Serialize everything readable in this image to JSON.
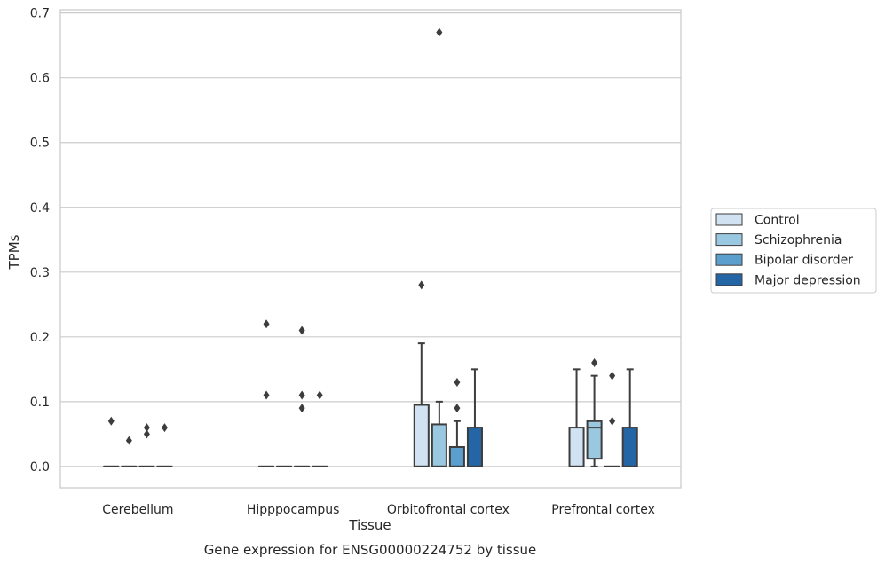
{
  "caption": "Gene expression for ENSG00000224752 by tissue",
  "chart_data": {
    "type": "box",
    "xlabel": "Tissue",
    "ylabel": "TPMs",
    "ylim": [
      -0.033,
      0.705
    ],
    "yticks": [
      0.0,
      0.1,
      0.2,
      0.3,
      0.4,
      0.5,
      0.6,
      0.7
    ],
    "ytick_labels": [
      "0.0",
      "0.1",
      "0.2",
      "0.3",
      "0.4",
      "0.5",
      "0.6",
      "0.7"
    ],
    "grid": "horizontal",
    "legend_position": "right",
    "categories": [
      "Cerebellum",
      "Hipppocampus",
      "Orbitofrontal cortex",
      "Prefrontal cortex"
    ],
    "series": [
      {
        "name": "Control",
        "color": "#d1e2f2",
        "boxes": [
          {
            "q1": 0,
            "median": 0,
            "q3": 0,
            "whislo": 0,
            "whishi": 0,
            "fliers": [
              0.07
            ]
          },
          {
            "q1": 0,
            "median": 0,
            "q3": 0,
            "whislo": 0,
            "whishi": 0,
            "fliers": [
              0.22,
              0.11
            ]
          },
          {
            "q1": 0,
            "median": 0,
            "q3": 0.095,
            "whislo": 0,
            "whishi": 0.19,
            "fliers": [
              0.28
            ]
          },
          {
            "q1": 0,
            "median": 0,
            "q3": 0.06,
            "whislo": 0,
            "whishi": 0.15,
            "fliers": []
          }
        ]
      },
      {
        "name": "Schizophrenia",
        "color": "#9ac8e0",
        "boxes": [
          {
            "q1": 0,
            "median": 0,
            "q3": 0,
            "whislo": 0,
            "whishi": 0,
            "fliers": [
              0.04
            ]
          },
          {
            "q1": 0,
            "median": 0,
            "q3": 0,
            "whislo": 0,
            "whishi": 0,
            "fliers": []
          },
          {
            "q1": 0,
            "median": 0,
            "q3": 0.065,
            "whislo": 0,
            "whishi": 0.1,
            "fliers": [
              0.67
            ]
          },
          {
            "q1": 0.012,
            "median": 0.06,
            "q3": 0.07,
            "whislo": 0,
            "whishi": 0.14,
            "fliers": [
              0.16
            ]
          }
        ]
      },
      {
        "name": "Bipolar disorder",
        "color": "#5b9fcf",
        "boxes": [
          {
            "q1": 0,
            "median": 0,
            "q3": 0,
            "whislo": 0,
            "whishi": 0,
            "fliers": [
              0.06,
              0.05
            ]
          },
          {
            "q1": 0,
            "median": 0,
            "q3": 0,
            "whislo": 0,
            "whishi": 0,
            "fliers": [
              0.21,
              0.11,
              0.09
            ]
          },
          {
            "q1": 0,
            "median": 0,
            "q3": 0.03,
            "whislo": 0,
            "whishi": 0.07,
            "fliers": [
              0.13,
              0.09
            ]
          },
          {
            "q1": 0,
            "median": 0,
            "q3": 0,
            "whislo": 0,
            "whishi": 0,
            "fliers": [
              0.14,
              0.07
            ]
          }
        ]
      },
      {
        "name": "Major depression",
        "color": "#2466a5",
        "boxes": [
          {
            "q1": 0,
            "median": 0,
            "q3": 0,
            "whislo": 0,
            "whishi": 0,
            "fliers": [
              0.06
            ]
          },
          {
            "q1": 0,
            "median": 0,
            "q3": 0,
            "whislo": 0,
            "whishi": 0,
            "fliers": [
              0.11
            ]
          },
          {
            "q1": 0,
            "median": 0,
            "q3": 0.06,
            "whislo": 0,
            "whishi": 0.15,
            "fliers": []
          },
          {
            "q1": 0,
            "median": 0,
            "q3": 0.06,
            "whislo": 0,
            "whishi": 0.15,
            "fliers": []
          }
        ]
      }
    ]
  }
}
